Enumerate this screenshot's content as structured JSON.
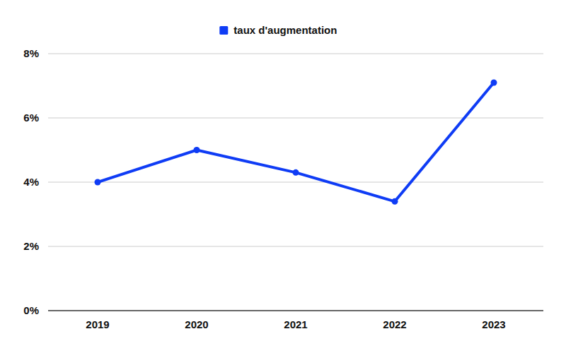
{
  "chart_data": {
    "type": "line",
    "categories": [
      "2019",
      "2020",
      "2021",
      "2022",
      "2023"
    ],
    "series": [
      {
        "name": "taux d'augmentation",
        "color": "#0f3cf5",
        "values": [
          4.0,
          5.0,
          4.3,
          3.4,
          7.1
        ],
        "marker": "circle"
      }
    ],
    "ylim": [
      0,
      8
    ],
    "yticks": [
      {
        "value": 0,
        "label": "0%"
      },
      {
        "value": 2,
        "label": "2%"
      },
      {
        "value": 4,
        "label": "4%"
      },
      {
        "value": 6,
        "label": "6%"
      },
      {
        "value": 8,
        "label": "8%"
      }
    ],
    "grid": true,
    "legend": "top"
  }
}
